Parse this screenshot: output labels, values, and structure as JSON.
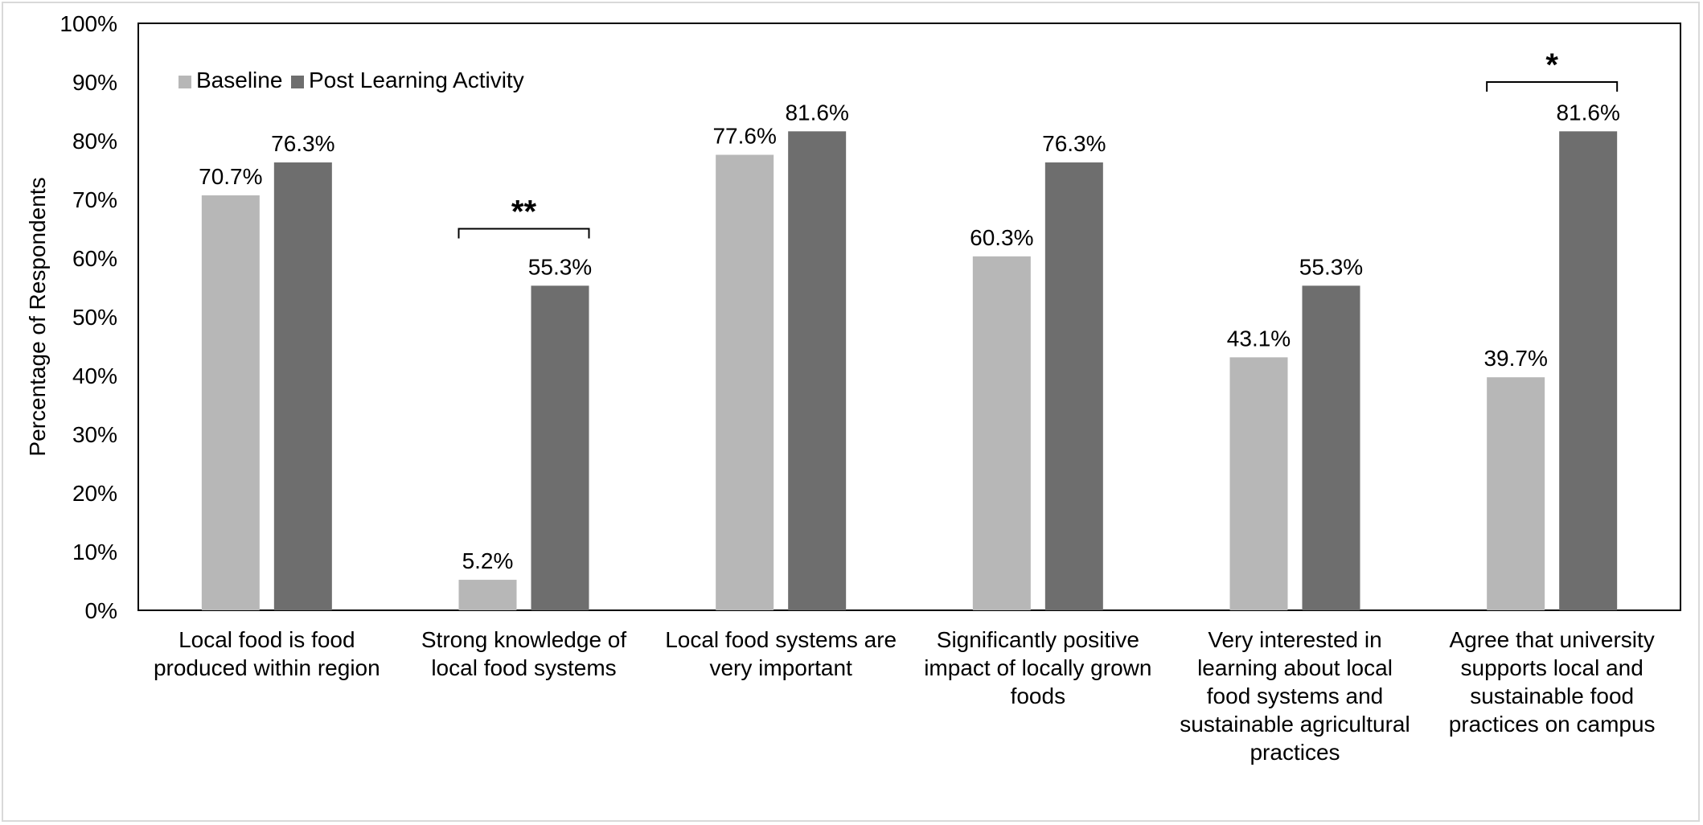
{
  "chart_data": {
    "type": "bar",
    "categories": [
      [
        "Local food is food",
        "produced within region"
      ],
      [
        "Strong knowledge of",
        "local food systems"
      ],
      [
        "Local food systems are",
        "very important"
      ],
      [
        "Significantly positive",
        "impact of locally grown",
        "foods"
      ],
      [
        "Very interested in",
        "learning about local",
        "food systems and",
        "sustainable agricultural",
        "practices"
      ],
      [
        "Agree that university",
        "supports local and",
        "sustainable food",
        "practices on campus"
      ]
    ],
    "series": [
      {
        "name": "Baseline",
        "color": "#b7b7b7",
        "values": [
          70.7,
          5.2,
          77.6,
          60.3,
          43.1,
          39.7
        ],
        "labels": [
          "70.7%",
          "5.2%",
          "77.6%",
          "60.3%",
          "43.1%",
          "39.7%"
        ]
      },
      {
        "name": "Post Learning Activity",
        "color": "#6e6e6e",
        "values": [
          76.3,
          55.3,
          81.6,
          76.3,
          55.3,
          81.6
        ],
        "labels": [
          "76.3%",
          "55.3%",
          "81.6%",
          "76.3%",
          "55.3%",
          "81.6%"
        ]
      }
    ],
    "ylabel": "Percentage of Respondents",
    "xlabel": "",
    "ylim": [
      0,
      100
    ],
    "yticks": [
      "0%",
      "10%",
      "20%",
      "30%",
      "40%",
      "50%",
      "60%",
      "70%",
      "80%",
      "90%",
      "100%"
    ],
    "legend_position": "top-left",
    "grid": false,
    "significance": [
      {
        "category_index": 1,
        "marker": "**",
        "level": 65
      },
      {
        "category_index": 5,
        "marker": "*",
        "level": 90
      }
    ]
  }
}
